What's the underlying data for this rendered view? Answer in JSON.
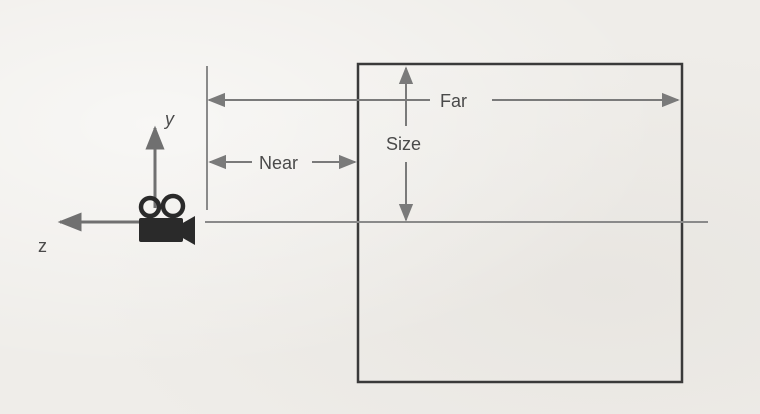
{
  "labels": {
    "y_axis": "y",
    "z_axis": "z",
    "near": "Near",
    "far": "Far",
    "size": "Size"
  },
  "colors": {
    "line": "#7a7a7a",
    "box": "#3a3a3a",
    "camera": "#2a2a2a",
    "text": "#4a4a4a"
  }
}
